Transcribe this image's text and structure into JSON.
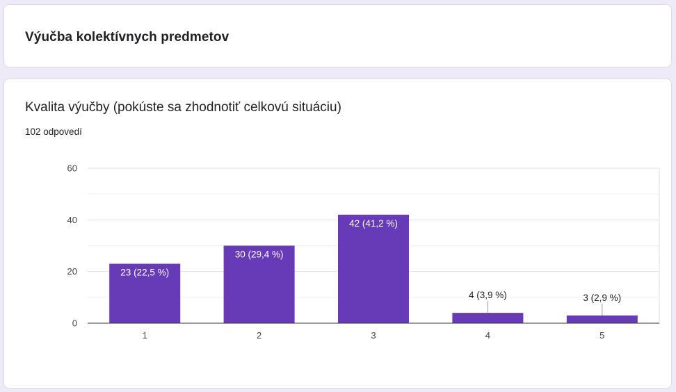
{
  "section": {
    "title": "Výučba kolektívnych predmetov"
  },
  "question": {
    "title": "Kvalita výučby (pokúste sa zhodnotiť celkovú situáciu)",
    "responses": "102 odpovedí"
  },
  "colors": {
    "bar": "#673ab7",
    "label_inside": "#ffffff",
    "label_outside": "#222222",
    "grid": "#e0e0e0",
    "axis": "#333333"
  },
  "chart_data": {
    "type": "bar",
    "categories": [
      "1",
      "2",
      "3",
      "4",
      "5"
    ],
    "values": [
      23,
      30,
      42,
      4,
      3
    ],
    "data_labels": [
      "23 (22,5 %)",
      "30 (29,4 %)",
      "42 (41,2 %)",
      "4 (3,9 %)",
      "3 (2,9 %)"
    ],
    "y_ticks": [
      0,
      20,
      40,
      60
    ],
    "ylim": [
      0,
      60
    ],
    "grid": true,
    "legend": "none"
  }
}
